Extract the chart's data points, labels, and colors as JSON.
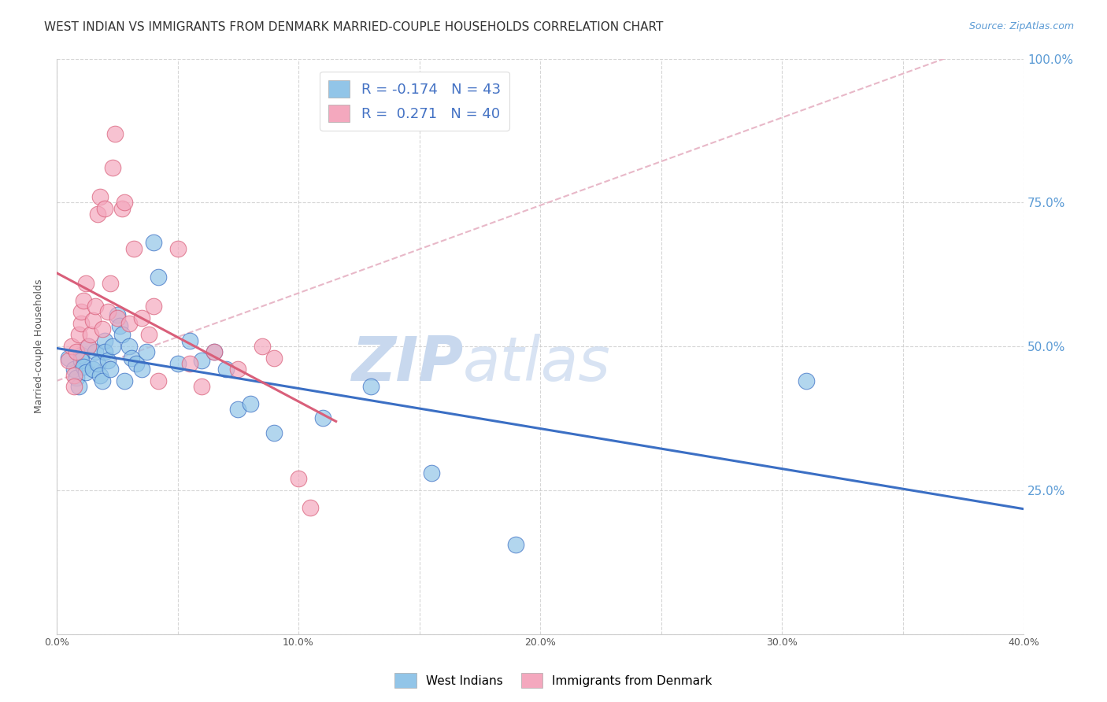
{
  "title": "WEST INDIAN VS IMMIGRANTS FROM DENMARK MARRIED-COUPLE HOUSEHOLDS CORRELATION CHART",
  "source": "Source: ZipAtlas.com",
  "ylabel": "Married-couple Households",
  "xlim": [
    0.0,
    0.4
  ],
  "ylim": [
    0.0,
    1.0
  ],
  "xticks": [
    0.0,
    0.05,
    0.1,
    0.15,
    0.2,
    0.25,
    0.3,
    0.35,
    0.4
  ],
  "yticks": [
    0.0,
    0.25,
    0.5,
    0.75,
    1.0
  ],
  "xtick_labels": [
    "0.0%",
    "",
    "10.0%",
    "",
    "20.0%",
    "",
    "30.0%",
    "",
    "40.0%"
  ],
  "ytick_labels_right": [
    "",
    "25.0%",
    "50.0%",
    "75.0%",
    "100.0%"
  ],
  "legend_labels": [
    "West Indians",
    "Immigrants from Denmark"
  ],
  "blue_color": "#92C5E8",
  "pink_color": "#F4A8BE",
  "blue_line_color": "#3B6FC4",
  "pink_line_color": "#D95F7A",
  "diag_color": "#E8B8C8",
  "R_blue": -0.174,
  "N_blue": 43,
  "R_pink": 0.271,
  "N_pink": 40,
  "blue_points_x": [
    0.005,
    0.007,
    0.008,
    0.009,
    0.01,
    0.01,
    0.011,
    0.012,
    0.013,
    0.015,
    0.016,
    0.017,
    0.018,
    0.019,
    0.02,
    0.02,
    0.021,
    0.022,
    0.023,
    0.025,
    0.026,
    0.027,
    0.028,
    0.03,
    0.031,
    0.033,
    0.035,
    0.037,
    0.04,
    0.042,
    0.05,
    0.055,
    0.06,
    0.065,
    0.07,
    0.075,
    0.08,
    0.09,
    0.11,
    0.13,
    0.155,
    0.31,
    0.19
  ],
  "blue_points_y": [
    0.48,
    0.46,
    0.445,
    0.43,
    0.485,
    0.475,
    0.465,
    0.455,
    0.5,
    0.46,
    0.49,
    0.47,
    0.45,
    0.44,
    0.51,
    0.49,
    0.475,
    0.46,
    0.5,
    0.555,
    0.535,
    0.52,
    0.44,
    0.5,
    0.48,
    0.47,
    0.46,
    0.49,
    0.68,
    0.62,
    0.47,
    0.51,
    0.475,
    0.49,
    0.46,
    0.39,
    0.4,
    0.35,
    0.375,
    0.43,
    0.28,
    0.44,
    0.155
  ],
  "pink_points_x": [
    0.005,
    0.006,
    0.007,
    0.007,
    0.008,
    0.009,
    0.01,
    0.01,
    0.011,
    0.012,
    0.013,
    0.014,
    0.015,
    0.016,
    0.017,
    0.018,
    0.019,
    0.02,
    0.021,
    0.022,
    0.023,
    0.024,
    0.025,
    0.027,
    0.028,
    0.03,
    0.032,
    0.035,
    0.038,
    0.04,
    0.042,
    0.05,
    0.055,
    0.06,
    0.065,
    0.075,
    0.085,
    0.09,
    0.1,
    0.105
  ],
  "pink_points_y": [
    0.475,
    0.5,
    0.45,
    0.43,
    0.49,
    0.52,
    0.54,
    0.56,
    0.58,
    0.61,
    0.5,
    0.52,
    0.545,
    0.57,
    0.73,
    0.76,
    0.53,
    0.74,
    0.56,
    0.61,
    0.81,
    0.87,
    0.55,
    0.74,
    0.75,
    0.54,
    0.67,
    0.55,
    0.52,
    0.57,
    0.44,
    0.67,
    0.47,
    0.43,
    0.49,
    0.46,
    0.5,
    0.48,
    0.27,
    0.22
  ],
  "background_color": "#FFFFFF",
  "grid_color": "#CCCCCC",
  "title_fontsize": 11,
  "axis_fontsize": 9,
  "tick_fontsize": 9,
  "legend_fontsize": 13,
  "source_fontsize": 9,
  "watermark_text": "ZIPatlas",
  "watermark_color": "#D4E5F5"
}
